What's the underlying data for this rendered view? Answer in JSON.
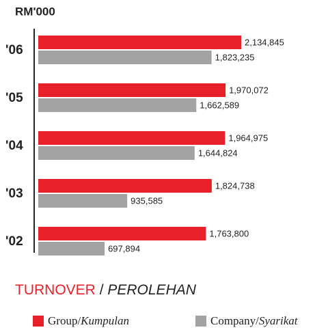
{
  "chart_data": {
    "type": "hbar",
    "unit": "RM'000",
    "title": "TURNOVER / PEROLEHAN",
    "categories": [
      "'06",
      "'05",
      "'04",
      "'03",
      "'02"
    ],
    "series": [
      {
        "name": "Group/Kumpulan",
        "color": "#e8202a",
        "values": [
          2134845,
          1970072,
          1964975,
          1824738,
          1763800
        ],
        "value_labels": [
          "2,134,845",
          "1,970,072",
          "1,964,975",
          "1,824,738",
          "1,763,800"
        ]
      },
      {
        "name": "Company/Syarikat",
        "color": "#a3a3a3",
        "values": [
          1823235,
          1662589,
          1644824,
          935585,
          697894
        ],
        "value_labels": [
          "1,823,235",
          "1,662,589",
          "1,644,824",
          "935,585",
          "697,894"
        ]
      }
    ]
  }
}
